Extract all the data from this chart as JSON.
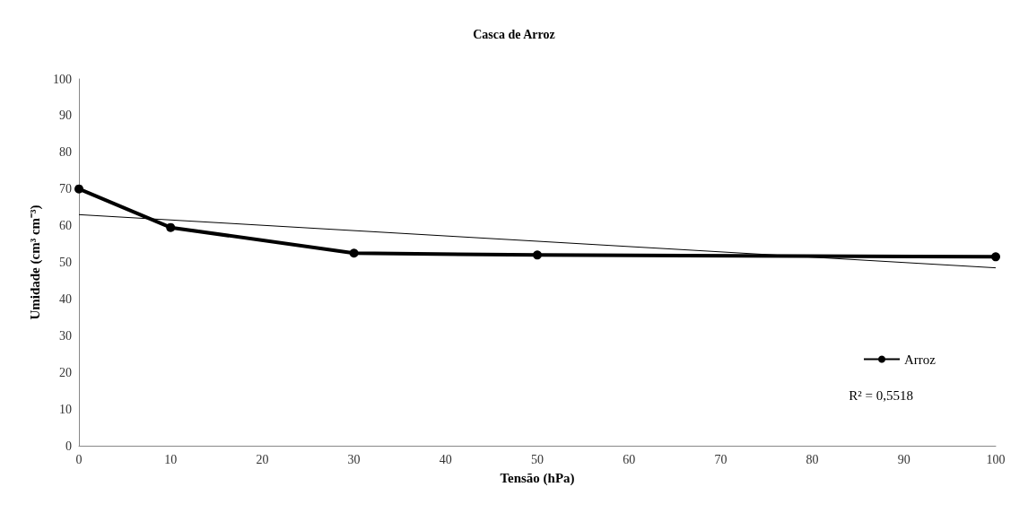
{
  "chart_data": {
    "type": "line",
    "title": "Casca de Arroz",
    "xlabel": "Tensão (hPa)",
    "ylabel": "Umidade (cm³ cm⁻³)",
    "xlim": [
      0,
      100
    ],
    "xticks": [
      0,
      10,
      20,
      30,
      40,
      50,
      60,
      70,
      80,
      90,
      100
    ],
    "ylim": [
      0,
      100
    ],
    "yticks": [
      0,
      10,
      20,
      30,
      40,
      50,
      60,
      70,
      80,
      90,
      100
    ],
    "grid": false,
    "legend": "right",
    "marker": "circle",
    "series": [
      {
        "name": "Arroz",
        "color": "#000000",
        "x": [
          0,
          10,
          30,
          50,
          100
        ],
        "values": [
          70,
          59.5,
          52.5,
          52,
          51.5
        ]
      },
      {
        "color": "#000000",
        "x": [
          0,
          100
        ],
        "values": [
          63,
          48.5
        ],
        "marker": "none"
      }
    ],
    "annotations": [
      "R² = 0,5518"
    ]
  }
}
